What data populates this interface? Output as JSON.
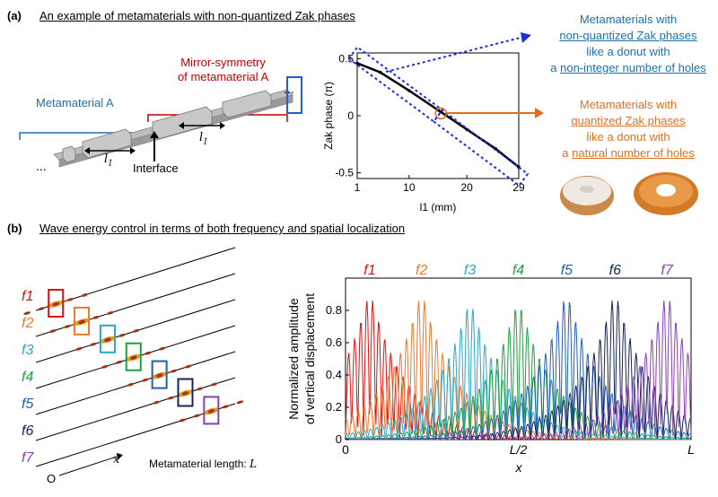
{
  "panel_a": {
    "label": "(a)",
    "heading": "An example of metamaterials with non-quantized Zak phases",
    "metamaterial_a": "Metamaterial A",
    "mirror_line1": "Mirror-symmetry",
    "mirror_line2": "of metamaterial A",
    "interface": "Interface",
    "dots": "...",
    "l1_label": "l",
    "l1_sub": "1",
    "blue_callout": {
      "line1": "Metamaterials with",
      "line2": "non-quantized Zak phases",
      "line3": "like a donut with",
      "line4_prefix": "a ",
      "line4_underlined": "non-integer number of holes"
    },
    "orange_callout": {
      "line1": "Metamaterials with",
      "line2": "quantized Zak phases",
      "line3": "like a donut with",
      "line4_prefix": "a ",
      "line4_underlined": "natural number of holes"
    },
    "colors": {
      "blue": "#1f6fb0",
      "red": "#c00000",
      "orange": "#e07020",
      "dotted_blue": "#1a2ee0"
    }
  },
  "panel_b": {
    "label": "(b)",
    "heading": "Wave energy control in terms of both frequency and spatial localization",
    "freq_labels": [
      "f1",
      "f2",
      "f3",
      "f4",
      "f5",
      "f6",
      "f7"
    ],
    "freq_colors": [
      "#e01010",
      "#e87a30",
      "#2aa7c8",
      "#1fa040",
      "#1f5fb8",
      "#14245a",
      "#8a3fb8"
    ],
    "x_arrow_label": "x",
    "origin_label": "O",
    "length_label_prefix": "Metamaterial length: ",
    "length_symbol": "L"
  },
  "chart_data": [
    {
      "type": "line",
      "title": "",
      "xlabel": "l1 (mm)",
      "ylabel": "Zak phase (π)",
      "x": [
        1,
        5,
        10,
        15,
        20,
        25,
        29
      ],
      "y": [
        0.46,
        0.38,
        0.22,
        0.05,
        -0.12,
        -0.29,
        -0.45
      ],
      "xticks": [
        "1",
        "10",
        "20",
        "29"
      ],
      "yticks": [
        "0.5",
        "0",
        "-0.5"
      ],
      "xlim": [
        1,
        29
      ],
      "ylim": [
        -0.55,
        0.55
      ]
    },
    {
      "type": "line",
      "title": "",
      "xlabel": "x",
      "ylabel": "Normalized amplitude of vertical displacement",
      "ylabel_line1": "Normalized amplitude",
      "ylabel_line2": "of vertical displacement",
      "xticks": [
        "0",
        "L/2",
        "L"
      ],
      "yticks": [
        "0",
        "0.2",
        "0.4",
        "0.6",
        "0.8"
      ],
      "xlim": [
        0,
        1
      ],
      "ylim": [
        0,
        1.0
      ],
      "series": [
        {
          "name": "f1",
          "peak_x": 0.07,
          "peak_value": 0.93
        },
        {
          "name": "f2",
          "peak_x": 0.22,
          "peak_value": 0.93
        },
        {
          "name": "f3",
          "peak_x": 0.36,
          "peak_value": 0.88
        },
        {
          "name": "f4",
          "peak_x": 0.5,
          "peak_value": 0.88
        },
        {
          "name": "f5",
          "peak_x": 0.64,
          "peak_value": 0.93
        },
        {
          "name": "f6",
          "peak_x": 0.78,
          "peak_value": 0.93
        },
        {
          "name": "f7",
          "peak_x": 0.93,
          "peak_value": 0.93
        }
      ]
    }
  ]
}
